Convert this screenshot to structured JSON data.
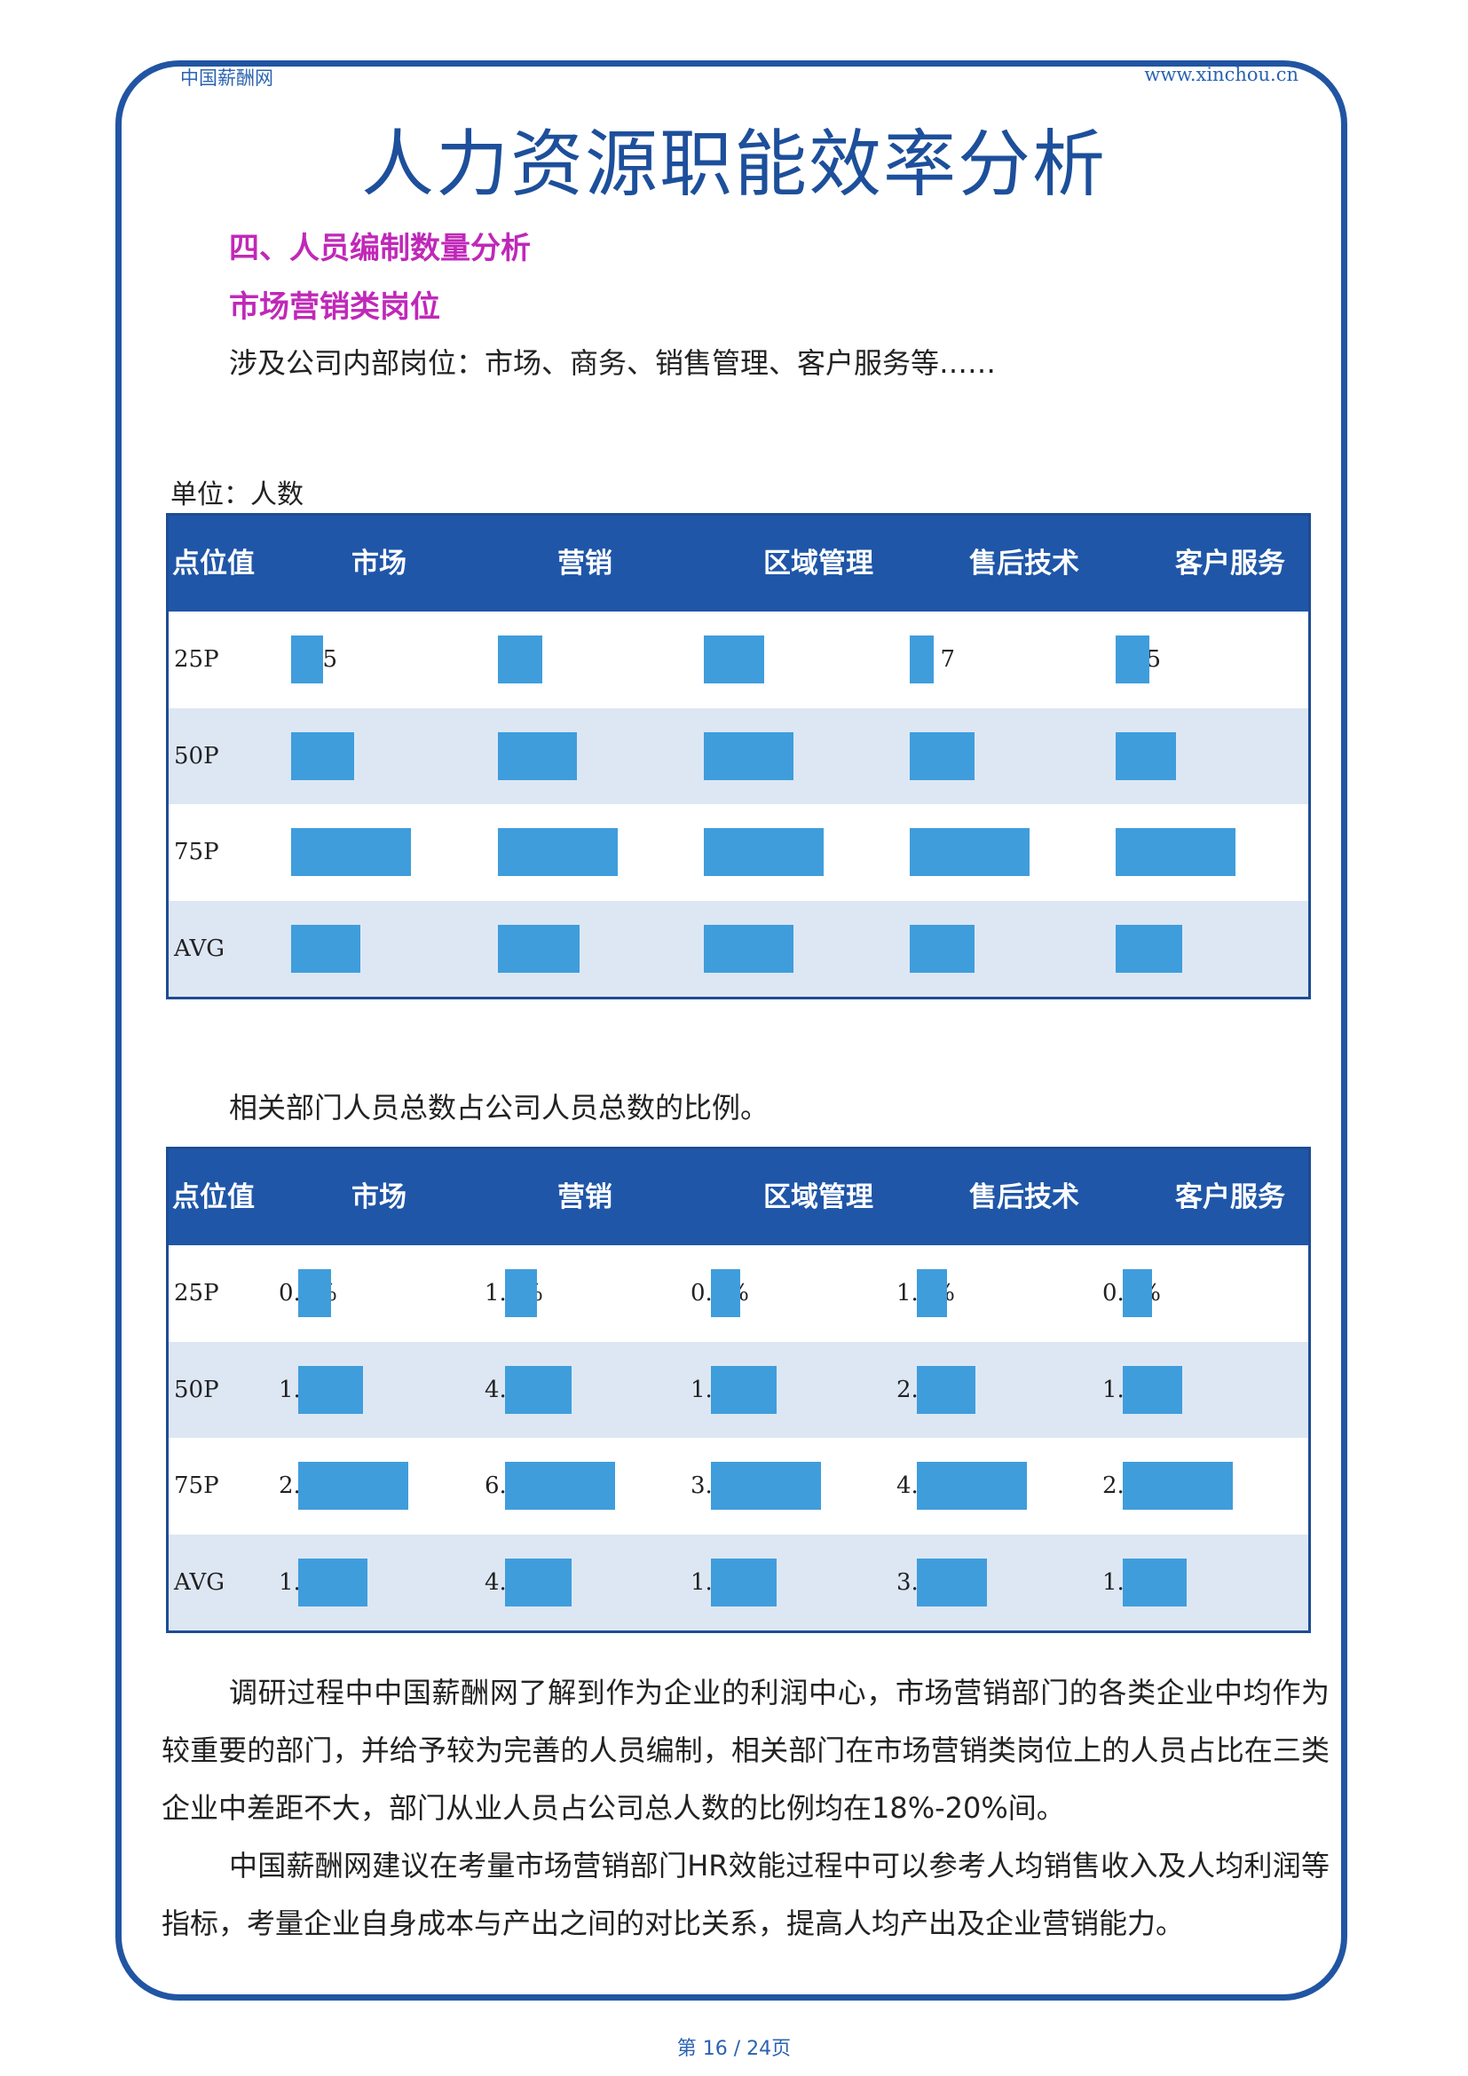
{
  "header": {
    "left": "中国薪酬网",
    "right": "www.xinchou.cn"
  },
  "title": "人力资源职能效率分析",
  "section_heading": "四、人员编制数量分析",
  "sub_heading": "市场营销类岗位",
  "intro": "涉及公司内部岗位：市场、商务、销售管理、客户服务等……",
  "unit_label": "单位：人数",
  "table_headers": [
    "点位值",
    "市场",
    "营销",
    "区域管理",
    "售后技术",
    "客户服务"
  ],
  "headcount_rows": [
    {
      "label": "25P",
      "values": [
        "5",
        "14",
        "8",
        "7",
        "5"
      ]
    },
    {
      "label": "50P",
      "values": [
        "10",
        "25",
        "12",
        "19",
        "9"
      ]
    },
    {
      "label": "75P",
      "values": [
        "19",
        "38",
        "16",
        "35",
        "18"
      ]
    },
    {
      "label": "AVG",
      "values": [
        "11",
        "26",
        "12",
        "19",
        "10"
      ]
    }
  ],
  "ratio_caption": "相关部门人员总数占公司人员总数的比例。",
  "ratio_rows": [
    {
      "label": "25P",
      "values": [
        "0.8%",
        "1.9%",
        "0.8%",
        "1.3%",
        "0.7%"
      ]
    },
    {
      "label": "50P",
      "values": [
        "1.6%",
        "4.0%",
        "1.8%",
        "2.5%",
        "1.4%"
      ]
    },
    {
      "label": "75P",
      "values": [
        "2.7%",
        "6.6%",
        "3.0%",
        "4.7%",
        "2.6%"
      ]
    },
    {
      "label": "AVG",
      "values": [
        "1.7%",
        "4.0%",
        "1.8%",
        "3.0%",
        "1.5%"
      ]
    }
  ],
  "paragraph1": "调研过程中中国薪酬网了解到作为企业的利润中心，市场营销部门的各类企业中均作为较重要的部门，并给予较为完善的人员编制，相关部门在市场营销类岗位上的人员占比在三类企业中差距不大，部门从业人员占公司总人数的比例均在18%-20%间。",
  "paragraph2": "中国薪酬网建议在考量市场营销部门HR效能过程中可以参考人均销售收入及人均利润等指标，考量企业自身成本与产出之间的对比关系，提高人均产出及企业营销能力。",
  "footer": "第 16 / 24页",
  "colors": {
    "frame": "#2155a3",
    "header_bg": "#1f56a8",
    "bar": "#3f9ddc",
    "alt_row": "#dde7f4",
    "heading": "#c028b8"
  }
}
